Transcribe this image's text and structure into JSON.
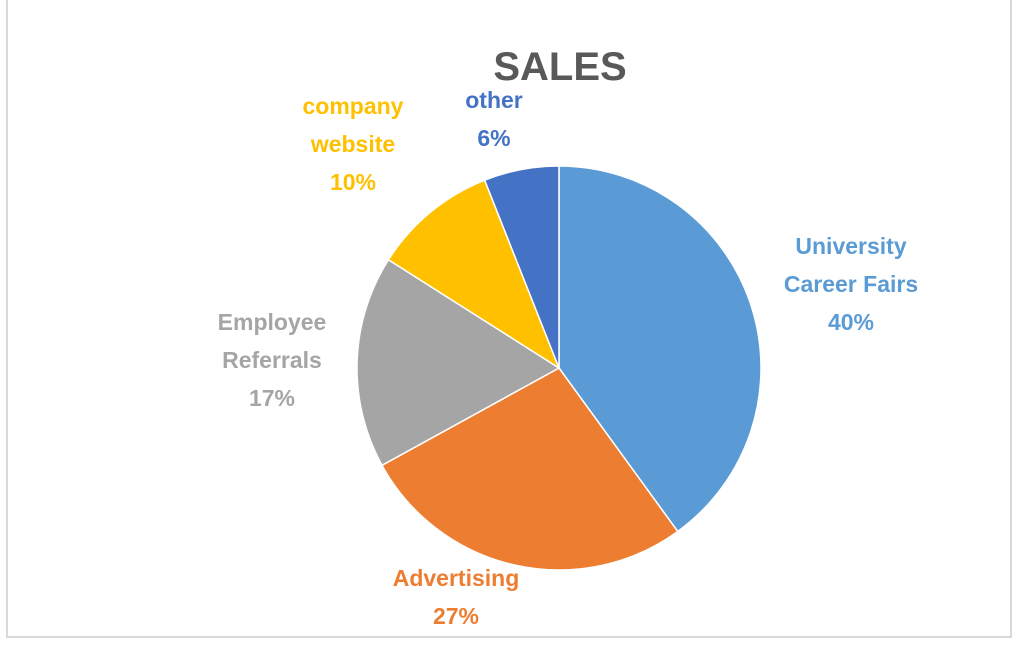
{
  "chart_data": {
    "type": "pie",
    "title": "SALES",
    "start": "top",
    "direction": "clockwise",
    "slices": [
      {
        "label": [
          "University",
          "Career Fairs"
        ],
        "value": 40,
        "pct": "40%",
        "color": "#5B9BD5"
      },
      {
        "label": [
          "Advertising"
        ],
        "value": 27,
        "pct": "27%",
        "color": "#ED7D31"
      },
      {
        "label": [
          "Employee",
          "Referrals"
        ],
        "value": 17,
        "pct": "17%",
        "color": "#A5A5A5"
      },
      {
        "label": [
          "company",
          "website"
        ],
        "value": 10,
        "pct": "10%",
        "color": "#FFC000"
      },
      {
        "label": [
          "other"
        ],
        "value": 6,
        "pct": "6%",
        "color": "#4472C4"
      }
    ]
  }
}
